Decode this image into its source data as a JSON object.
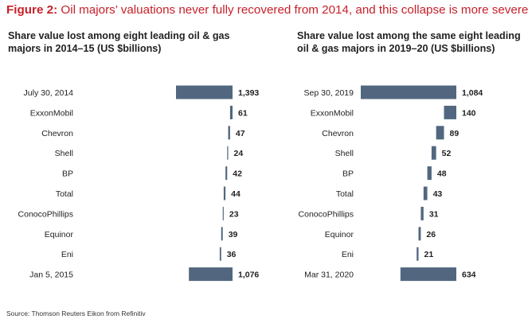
{
  "figure": {
    "prefix": "Figure 2:",
    "title": "Oil majors’ valuations never fully recovered from 2014, and this collapse is more severe",
    "source": "Source: Thomson Reuters Eikon from Refinitiv"
  },
  "colors": {
    "bar": "#52677f",
    "accent": "#c8202a"
  },
  "chart_data": [
    {
      "type": "waterfall",
      "title": "Share value lost among eight leading oil & gas majors in 2014–15 (US $billions)",
      "categories": [
        "July 30, 2014",
        "ExxonMobil",
        "Chevron",
        "Shell",
        "BP",
        "Total",
        "ConocoPhillips",
        "Equinor",
        "Eni",
        "Jan 5, 2015"
      ],
      "values": [
        1393,
        61,
        47,
        24,
        42,
        44,
        23,
        39,
        36,
        1076
      ],
      "labels": [
        "1,393",
        "61",
        "47",
        "24",
        "42",
        "44",
        "23",
        "39",
        "36",
        "1,076"
      ],
      "kinds": [
        "total",
        "decrease",
        "decrease",
        "decrease",
        "decrease",
        "decrease",
        "decrease",
        "decrease",
        "decrease",
        "total"
      ]
    },
    {
      "type": "waterfall",
      "title": "Share value lost among the same eight leading oil & gas majors in 2019–20 (US $billions)",
      "categories": [
        "Sep 30, 2019",
        "ExxonMobil",
        "Chevron",
        "Shell",
        "BP",
        "Total",
        "ConocoPhillips",
        "Equinor",
        "Eni",
        "Mar 31, 2020"
      ],
      "values": [
        1084,
        140,
        89,
        52,
        48,
        43,
        31,
        26,
        21,
        634
      ],
      "labels": [
        "1,084",
        "140",
        "89",
        "52",
        "48",
        "43",
        "31",
        "26",
        "21",
        "634"
      ],
      "kinds": [
        "total",
        "decrease",
        "decrease",
        "decrease",
        "decrease",
        "decrease",
        "decrease",
        "decrease",
        "decrease",
        "total"
      ]
    }
  ]
}
